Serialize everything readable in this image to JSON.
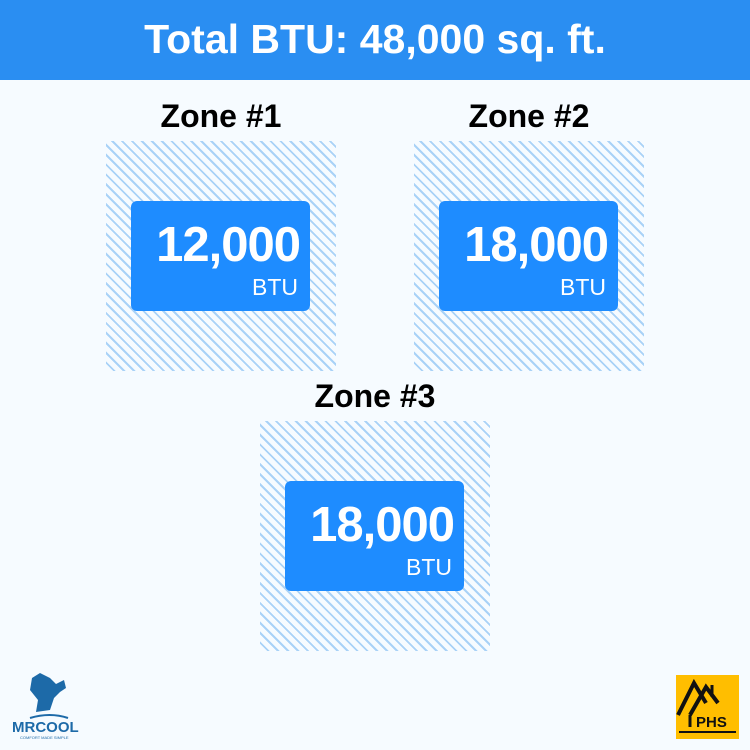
{
  "header": {
    "title": "Total BTU: 48,000 sq. ft."
  },
  "zones": [
    {
      "title": "Zone #1",
      "value": "12,000",
      "unit": "BTU"
    },
    {
      "title": "Zone #2",
      "value": "18,000",
      "unit": "BTU"
    },
    {
      "title": "Zone #3",
      "value": "18,000",
      "unit": "BTU"
    }
  ],
  "logos": {
    "left": {
      "name": "MRCOOL",
      "tagline": "COMFORT MADE SIMPLE"
    },
    "right": {
      "name": "PHS"
    }
  },
  "colors": {
    "accent": "#2a8ef2",
    "card": "#1e8cff",
    "hatch": "#a9d2f7",
    "background": "#f6fbff",
    "phs": "#ffbe00"
  }
}
